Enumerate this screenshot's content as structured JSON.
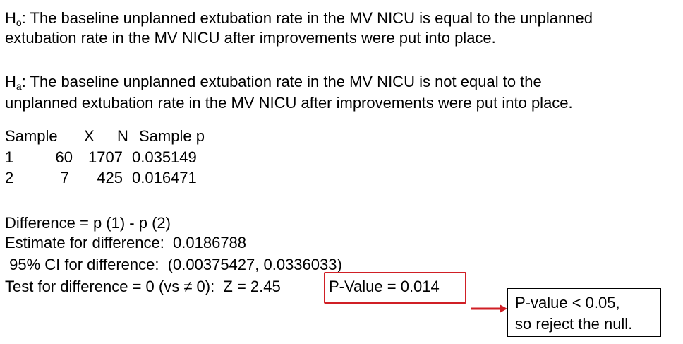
{
  "h0": {
    "symbol": "H",
    "sub": "o",
    "line1": ": The baseline unplanned extubation rate in the MV NICU is equal to the unplanned",
    "line2": "extubation rate in the MV NICU after improvements were put into place."
  },
  "ha": {
    "symbol": "H",
    "sub": "a",
    "line1": ": The baseline unplanned extubation rate in the MV NICU is not equal to the",
    "line2": "unplanned extubation rate in the MV NICU after improvements were put into place."
  },
  "table": {
    "headers": [
      "Sample",
      "X",
      "N",
      "Sample p"
    ],
    "rows": [
      [
        "1",
        "60",
        "1707",
        "0.035149"
      ],
      [
        "2",
        "7",
        "425",
        "0.016471"
      ]
    ]
  },
  "results": {
    "difference": "Difference = p (1) - p (2)",
    "estimate": "Estimate for difference:  0.0186788",
    "ci": " 95% CI for difference:  (0.00375427, 0.0336033)",
    "test": "Test for difference = 0 (vs ≠ 0):  Z = 2.45",
    "pvalue": "P-Value = 0.014"
  },
  "callout": {
    "line1": "P-value < 0.05,",
    "line2": "so reject the null."
  },
  "colors": {
    "highlight": "#d01f25"
  }
}
